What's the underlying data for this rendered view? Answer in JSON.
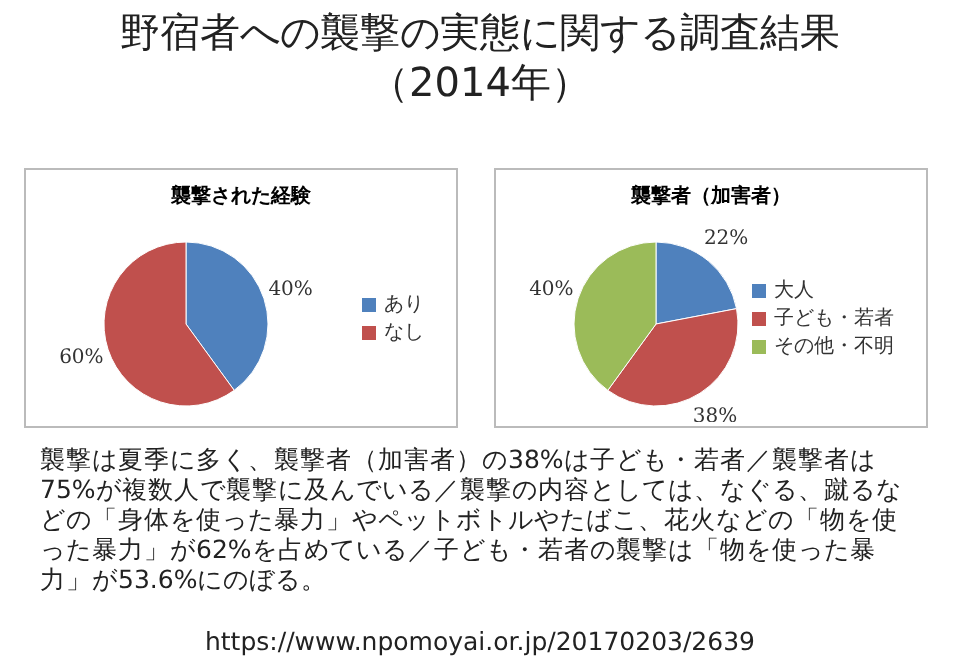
{
  "chart_data": [
    {
      "type": "other",
      "title": "野宿者への襲撃の実態に関する調査結果（2014年）"
    },
    {
      "type": "pie",
      "title": "襲撃された経験",
      "categories": [
        "あり",
        "なし"
      ],
      "values": [
        40,
        60
      ],
      "colors": [
        "#4f81bd",
        "#c0504d"
      ],
      "value_labels": [
        "40%",
        "60%"
      ],
      "legend": "right"
    },
    {
      "type": "pie",
      "title": "襲撃者（加害者）",
      "categories": [
        "大人",
        "子ども・若者",
        "その他・不明"
      ],
      "values": [
        22,
        38,
        40
      ],
      "colors": [
        "#4f81bd",
        "#c0504d",
        "#9bbb59"
      ],
      "value_labels": [
        "22%",
        "38%",
        "40%"
      ],
      "legend": "right"
    },
    {
      "type": "other",
      "annotations": [
        "襲撃は夏季に多く、襲撃者（加害者）の38%は子ども・若者／襲撃者は75%が複数人で襲撃に及んでいる／襲撃の内容としては、なぐる、蹴るなどの「身体を使った暴力」やペットボトルやたばこ、花火などの「物を使った暴力」が62%を占めている／子ども・若者の襲撃は「物を使った暴力」が53.6%にのぼる。",
        "https://www.npomoyai.or.jp/20170203/2639"
      ]
    }
  ]
}
